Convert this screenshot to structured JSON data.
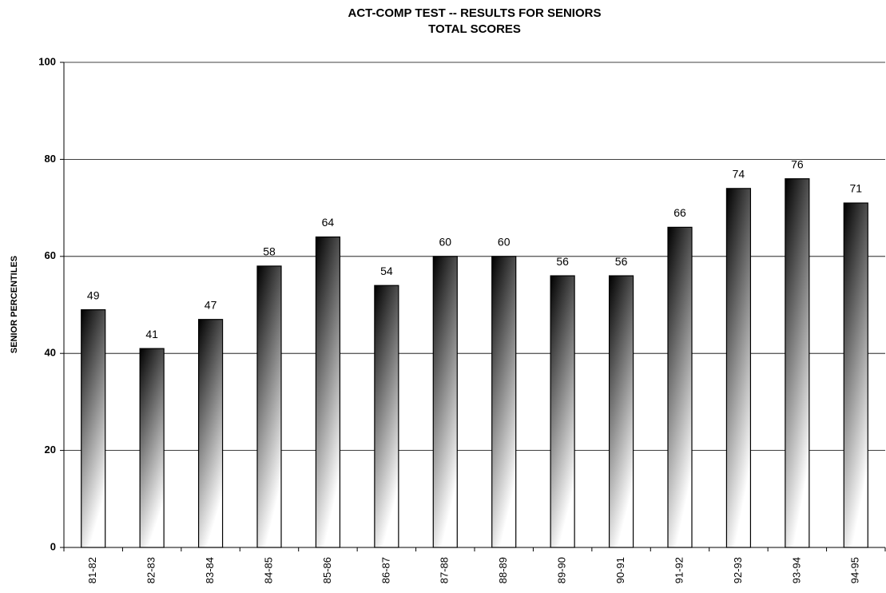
{
  "chart_data": {
    "type": "bar",
    "title": "ACT-COMP TEST -- RESULTS FOR SENIORS",
    "subtitle": "TOTAL SCORES",
    "y_label": "SENIOR PERCENTILES",
    "categories": [
      "81-82",
      "82-83",
      "83-84",
      "84-85",
      "85-86",
      "86-87",
      "87-88",
      "88-89",
      "89-90",
      "90-91",
      "91-92",
      "92-93",
      "93-94",
      "94-95"
    ],
    "values": [
      49,
      41,
      47,
      58,
      64,
      54,
      60,
      60,
      56,
      56,
      66,
      74,
      76,
      71
    ],
    "color": "#000000",
    "ylim": [
      0,
      100
    ],
    "yticks": [
      0,
      20,
      40,
      60,
      80,
      100
    ],
    "grid": true
  }
}
